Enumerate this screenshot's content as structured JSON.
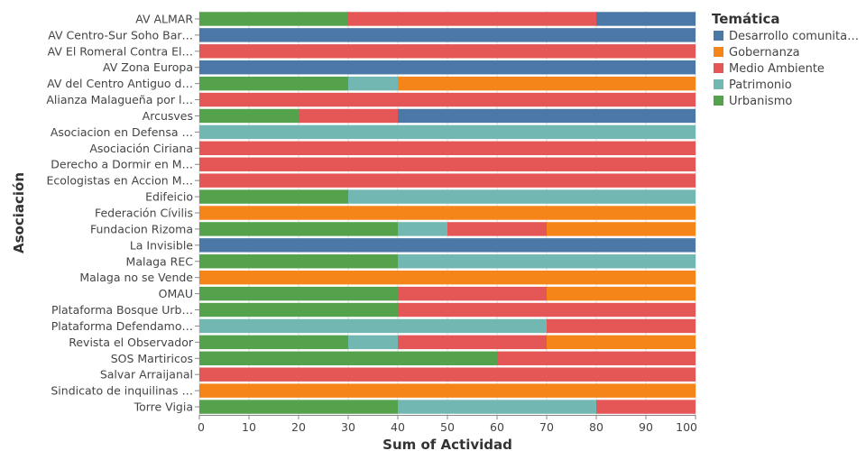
{
  "chart_data": {
    "type": "bar",
    "orientation": "horizontal",
    "stacked": true,
    "title": "",
    "xlabel": "Sum of Actividad",
    "ylabel": "Asociación",
    "xlim": [
      0,
      100
    ],
    "xticks": [
      0,
      10,
      20,
      30,
      40,
      50,
      60,
      70,
      80,
      90,
      100
    ],
    "grid": true,
    "legend": {
      "title": "Temática",
      "position": "right"
    },
    "categories": [
      "AV ALMAR",
      "AV Centro-Sur Soho Bar…",
      "AV El Romeral Contra El…",
      "AV Zona Europa",
      "AV del Centro Antiguo d…",
      "Alianza Malagueña por l…",
      "Arcusves",
      "Asociacion en Defensa …",
      "Asociación Ciriana",
      "Derecho a Dormir en M…",
      "Ecologistas en Accion M…",
      "Edifeicio",
      "Federación Cívilis",
      "Fundacion Rizoma",
      "La Invisible",
      "Malaga REC",
      "Malaga no se Vende",
      "OMAU",
      "Plataforma Bosque Urb…",
      "Plataforma Defendamo…",
      "Revista el Observador",
      "SOS Martiricos",
      "Salvar Arraijanal",
      "Sindicato de inquilinas …",
      "Torre Vigia"
    ],
    "stack_order": [
      "Urbanismo",
      "Patrimonio",
      "Medio Ambiente",
      "Gobernanza",
      "Desarrollo comunita…"
    ],
    "series": [
      {
        "name": "Desarrollo comunita…",
        "color": "#4c78a8",
        "values": [
          20,
          100,
          0,
          100,
          0,
          0,
          60,
          0,
          0,
          0,
          0,
          0,
          0,
          0,
          100,
          0,
          0,
          0,
          0,
          0,
          0,
          0,
          0,
          0,
          0
        ]
      },
      {
        "name": "Gobernanza",
        "color": "#f58518",
        "values": [
          0,
          0,
          0,
          0,
          60,
          0,
          0,
          0,
          0,
          0,
          0,
          0,
          100,
          30,
          0,
          0,
          100,
          30,
          0,
          0,
          30,
          0,
          0,
          100,
          0
        ]
      },
      {
        "name": "Medio Ambiente",
        "color": "#e45756",
        "values": [
          50,
          0,
          100,
          0,
          0,
          100,
          20,
          0,
          100,
          100,
          100,
          0,
          0,
          20,
          0,
          0,
          0,
          30,
          60,
          30,
          30,
          40,
          100,
          0,
          20
        ]
      },
      {
        "name": "Patrimonio",
        "color": "#72b7b2",
        "values": [
          0,
          0,
          0,
          0,
          10,
          0,
          0,
          100,
          0,
          0,
          0,
          70,
          0,
          10,
          0,
          60,
          0,
          0,
          0,
          70,
          10,
          0,
          0,
          0,
          40
        ]
      },
      {
        "name": "Urbanismo",
        "color": "#54a24b",
        "values": [
          30,
          0,
          0,
          0,
          30,
          0,
          20,
          0,
          0,
          0,
          0,
          30,
          0,
          40,
          0,
          40,
          0,
          40,
          40,
          0,
          30,
          60,
          0,
          0,
          40
        ]
      }
    ]
  }
}
